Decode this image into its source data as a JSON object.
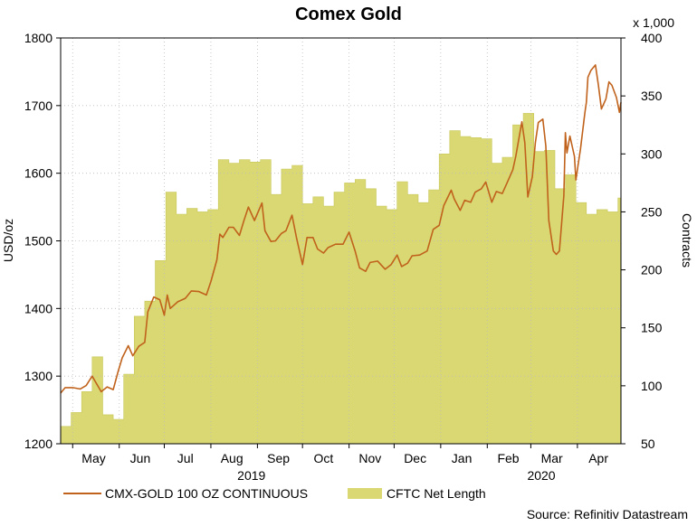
{
  "chart_data": {
    "type": "line",
    "title": "Comex Gold",
    "source": "Source: Refinitiv Datastream",
    "x_axis": {
      "months": [
        "May",
        "Jun",
        "Jul",
        "Aug",
        "Sep",
        "Oct",
        "Nov",
        "Dec",
        "Jan",
        "Feb",
        "Mar",
        "Apr"
      ],
      "years": [
        "2019",
        "2020"
      ],
      "range": [
        "2019-04-23",
        "2020-04-30"
      ]
    },
    "y_left": {
      "label": "USD/oz",
      "min": 1200,
      "max": 1800,
      "ticks": [
        1200,
        1300,
        1400,
        1500,
        1600,
        1700,
        1800
      ]
    },
    "y_right": {
      "label": "Contracts",
      "multiplier": "x 1,000",
      "min": 50,
      "max": 400,
      "ticks": [
        50,
        100,
        150,
        200,
        250,
        300,
        350,
        400
      ]
    },
    "colors": {
      "line": "#c0621b",
      "area": "#d9d873",
      "area_edge": "#c8c75a",
      "grid": "#bcbcbc"
    },
    "series": [
      {
        "name": "CMX-GOLD 100 OZ CONTINUOUS",
        "axis": "left",
        "type": "line",
        "points": [
          [
            "2019-04-23",
            1275
          ],
          [
            "2019-04-26",
            1283
          ],
          [
            "2019-05-01",
            1283
          ],
          [
            "2019-05-06",
            1281
          ],
          [
            "2019-05-10",
            1286
          ],
          [
            "2019-05-14",
            1300
          ],
          [
            "2019-05-20",
            1277
          ],
          [
            "2019-05-24",
            1284
          ],
          [
            "2019-05-28",
            1280
          ],
          [
            "2019-05-31",
            1305
          ],
          [
            "2019-06-03",
            1327
          ],
          [
            "2019-06-07",
            1345
          ],
          [
            "2019-06-10",
            1330
          ],
          [
            "2019-06-14",
            1344
          ],
          [
            "2019-06-18",
            1350
          ],
          [
            "2019-06-20",
            1395
          ],
          [
            "2019-06-24",
            1417
          ],
          [
            "2019-06-28",
            1413
          ],
          [
            "2019-07-01",
            1390
          ],
          [
            "2019-07-03",
            1420
          ],
          [
            "2019-07-05",
            1400
          ],
          [
            "2019-07-10",
            1410
          ],
          [
            "2019-07-15",
            1415
          ],
          [
            "2019-07-19",
            1426
          ],
          [
            "2019-07-24",
            1425
          ],
          [
            "2019-07-29",
            1420
          ],
          [
            "2019-08-01",
            1440
          ],
          [
            "2019-08-05",
            1472
          ],
          [
            "2019-08-07",
            1510
          ],
          [
            "2019-08-09",
            1505
          ],
          [
            "2019-08-13",
            1520
          ],
          [
            "2019-08-16",
            1520
          ],
          [
            "2019-08-20",
            1508
          ],
          [
            "2019-08-23",
            1530
          ],
          [
            "2019-08-26",
            1550
          ],
          [
            "2019-08-30",
            1530
          ],
          [
            "2019-09-04",
            1556
          ],
          [
            "2019-09-06",
            1515
          ],
          [
            "2019-09-10",
            1499
          ],
          [
            "2019-09-13",
            1500
          ],
          [
            "2019-09-17",
            1511
          ],
          [
            "2019-09-20",
            1515
          ],
          [
            "2019-09-24",
            1538
          ],
          [
            "2019-09-27",
            1505
          ],
          [
            "2019-10-01",
            1465
          ],
          [
            "2019-10-04",
            1505
          ],
          [
            "2019-10-08",
            1505
          ],
          [
            "2019-10-11",
            1488
          ],
          [
            "2019-10-15",
            1482
          ],
          [
            "2019-10-18",
            1490
          ],
          [
            "2019-10-23",
            1495
          ],
          [
            "2019-10-28",
            1495
          ],
          [
            "2019-11-01",
            1513
          ],
          [
            "2019-11-05",
            1485
          ],
          [
            "2019-11-08",
            1460
          ],
          [
            "2019-11-12",
            1455
          ],
          [
            "2019-11-15",
            1468
          ],
          [
            "2019-11-20",
            1470
          ],
          [
            "2019-11-25",
            1458
          ],
          [
            "2019-11-29",
            1465
          ],
          [
            "2019-12-03",
            1479
          ],
          [
            "2019-12-06",
            1462
          ],
          [
            "2019-12-10",
            1467
          ],
          [
            "2019-12-13",
            1478
          ],
          [
            "2019-12-18",
            1479
          ],
          [
            "2019-12-23",
            1485
          ],
          [
            "2019-12-27",
            1517
          ],
          [
            "2019-12-31",
            1523
          ],
          [
            "2020-01-03",
            1552
          ],
          [
            "2020-01-08",
            1575
          ],
          [
            "2020-01-10",
            1562
          ],
          [
            "2020-01-14",
            1545
          ],
          [
            "2020-01-17",
            1560
          ],
          [
            "2020-01-21",
            1557
          ],
          [
            "2020-01-24",
            1572
          ],
          [
            "2020-01-28",
            1577
          ],
          [
            "2020-01-31",
            1587
          ],
          [
            "2020-02-04",
            1557
          ],
          [
            "2020-02-07",
            1573
          ],
          [
            "2020-02-11",
            1570
          ],
          [
            "2020-02-14",
            1585
          ],
          [
            "2020-02-18",
            1605
          ],
          [
            "2020-02-20",
            1625
          ],
          [
            "2020-02-24",
            1676
          ],
          [
            "2020-02-26",
            1645
          ],
          [
            "2020-02-28",
            1565
          ],
          [
            "2020-03-02",
            1595
          ],
          [
            "2020-03-04",
            1645
          ],
          [
            "2020-03-06",
            1675
          ],
          [
            "2020-03-09",
            1680
          ],
          [
            "2020-03-11",
            1640
          ],
          [
            "2020-03-13",
            1530
          ],
          [
            "2020-03-16",
            1485
          ],
          [
            "2020-03-18",
            1480
          ],
          [
            "2020-03-20",
            1485
          ],
          [
            "2020-03-23",
            1567
          ],
          [
            "2020-03-24",
            1660
          ],
          [
            "2020-03-25",
            1630
          ],
          [
            "2020-03-27",
            1655
          ],
          [
            "2020-03-30",
            1625
          ],
          [
            "2020-03-31",
            1590
          ],
          [
            "2020-04-02",
            1620
          ],
          [
            "2020-04-03",
            1635
          ],
          [
            "2020-04-06",
            1690
          ],
          [
            "2020-04-07",
            1705
          ],
          [
            "2020-04-08",
            1742
          ],
          [
            "2020-04-10",
            1752
          ],
          [
            "2020-04-13",
            1760
          ],
          [
            "2020-04-15",
            1730
          ],
          [
            "2020-04-17",
            1695
          ],
          [
            "2020-04-20",
            1710
          ],
          [
            "2020-04-22",
            1735
          ],
          [
            "2020-04-24",
            1730
          ],
          [
            "2020-04-27",
            1712
          ],
          [
            "2020-04-29",
            1690
          ],
          [
            "2020-04-30",
            1705
          ]
        ]
      },
      {
        "name": "CFTC Net Length",
        "axis": "right",
        "type": "area",
        "points": [
          [
            "2019-04-23",
            65
          ],
          [
            "2019-04-30",
            77
          ],
          [
            "2019-05-07",
            95
          ],
          [
            "2019-05-14",
            125
          ],
          [
            "2019-05-21",
            75
          ],
          [
            "2019-05-28",
            71
          ],
          [
            "2019-06-04",
            110
          ],
          [
            "2019-06-11",
            160
          ],
          [
            "2019-06-18",
            173
          ],
          [
            "2019-06-25",
            208
          ],
          [
            "2019-07-02",
            267
          ],
          [
            "2019-07-09",
            248
          ],
          [
            "2019-07-16",
            253
          ],
          [
            "2019-07-23",
            250
          ],
          [
            "2019-07-30",
            252
          ],
          [
            "2019-08-06",
            295
          ],
          [
            "2019-08-13",
            292
          ],
          [
            "2019-08-20",
            295
          ],
          [
            "2019-08-27",
            293
          ],
          [
            "2019-09-03",
            295
          ],
          [
            "2019-09-10",
            265
          ],
          [
            "2019-09-17",
            287
          ],
          [
            "2019-09-24",
            290
          ],
          [
            "2019-10-01",
            257
          ],
          [
            "2019-10-08",
            263
          ],
          [
            "2019-10-15",
            255
          ],
          [
            "2019-10-22",
            267
          ],
          [
            "2019-10-29",
            275
          ],
          [
            "2019-11-05",
            278
          ],
          [
            "2019-11-12",
            270
          ],
          [
            "2019-11-19",
            255
          ],
          [
            "2019-11-26",
            252
          ],
          [
            "2019-12-03",
            276
          ],
          [
            "2019-12-10",
            265
          ],
          [
            "2019-12-17",
            258
          ],
          [
            "2019-12-24",
            269
          ],
          [
            "2019-12-31",
            300
          ],
          [
            "2020-01-07",
            320
          ],
          [
            "2020-01-14",
            315
          ],
          [
            "2020-01-21",
            314
          ],
          [
            "2020-01-28",
            313
          ],
          [
            "2020-02-04",
            292
          ],
          [
            "2020-02-11",
            297
          ],
          [
            "2020-02-18",
            325
          ],
          [
            "2020-02-25",
            335
          ],
          [
            "2020-03-03",
            302
          ],
          [
            "2020-03-10",
            303
          ],
          [
            "2020-03-17",
            270
          ],
          [
            "2020-03-24",
            282
          ],
          [
            "2020-03-31",
            258
          ],
          [
            "2020-04-07",
            248
          ],
          [
            "2020-04-14",
            252
          ],
          [
            "2020-04-21",
            250
          ],
          [
            "2020-04-28",
            262
          ]
        ]
      }
    ],
    "legend": {
      "placement": "bottom"
    },
    "grid": true
  }
}
